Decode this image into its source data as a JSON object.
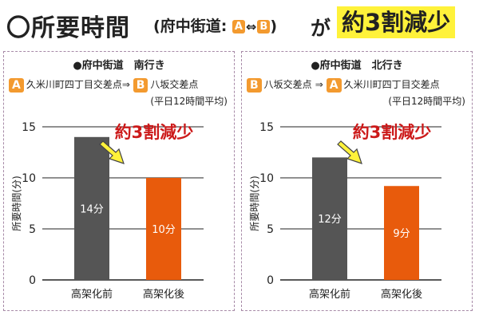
{
  "header": {
    "title_main": "〇所要時間",
    "paren_open": "(",
    "road": "府中街道:",
    "badge_a": "A",
    "arrow": "⇔",
    "badge_b": "B",
    "paren_close": ")",
    "ga": "が",
    "highlight": "約3割減少"
  },
  "colors": {
    "before_bar": "#555555",
    "after_bar": "#e85b0c",
    "badge": "#f39a2f",
    "highlight": "#fff23a",
    "reduction_text": "#cc1a1a"
  },
  "panels": [
    {
      "title": "●府中街道　南行き",
      "route": {
        "badge1": "A",
        "from": "久米川町四丁目交差点⇒",
        "badge2": "B",
        "to": "八坂交差点"
      },
      "note": "(平日12時間平均)",
      "reduction_label": "約3割減少"
    },
    {
      "title": "●府中街道　北行き",
      "route": {
        "badge1": "B",
        "from": "八坂交差点",
        "sep": "⇒",
        "badge2": "A",
        "to": "久米川町四丁目交差点"
      },
      "note": "(平日12時間平均)",
      "reduction_label": "約3割減少"
    }
  ],
  "chart_data": [
    {
      "type": "bar",
      "title": "●府中街道　南行き",
      "categories": [
        "高架化前",
        "高架化後"
      ],
      "values": [
        14,
        10
      ],
      "data_labels": [
        "14分",
        "10分"
      ],
      "ylabel": "所要時間(分)",
      "ylim": [
        0,
        15
      ],
      "yticks": [
        0,
        5,
        10,
        15
      ],
      "grid": true
    },
    {
      "type": "bar",
      "title": "●府中街道　北行き",
      "categories": [
        "高架化前",
        "高架化後"
      ],
      "values": [
        12,
        9.2
      ],
      "data_labels": [
        "12分",
        "9分"
      ],
      "ylabel": "所要時間(分)",
      "ylim": [
        0,
        15
      ],
      "yticks": [
        0,
        5,
        10,
        15
      ],
      "grid": true
    }
  ]
}
